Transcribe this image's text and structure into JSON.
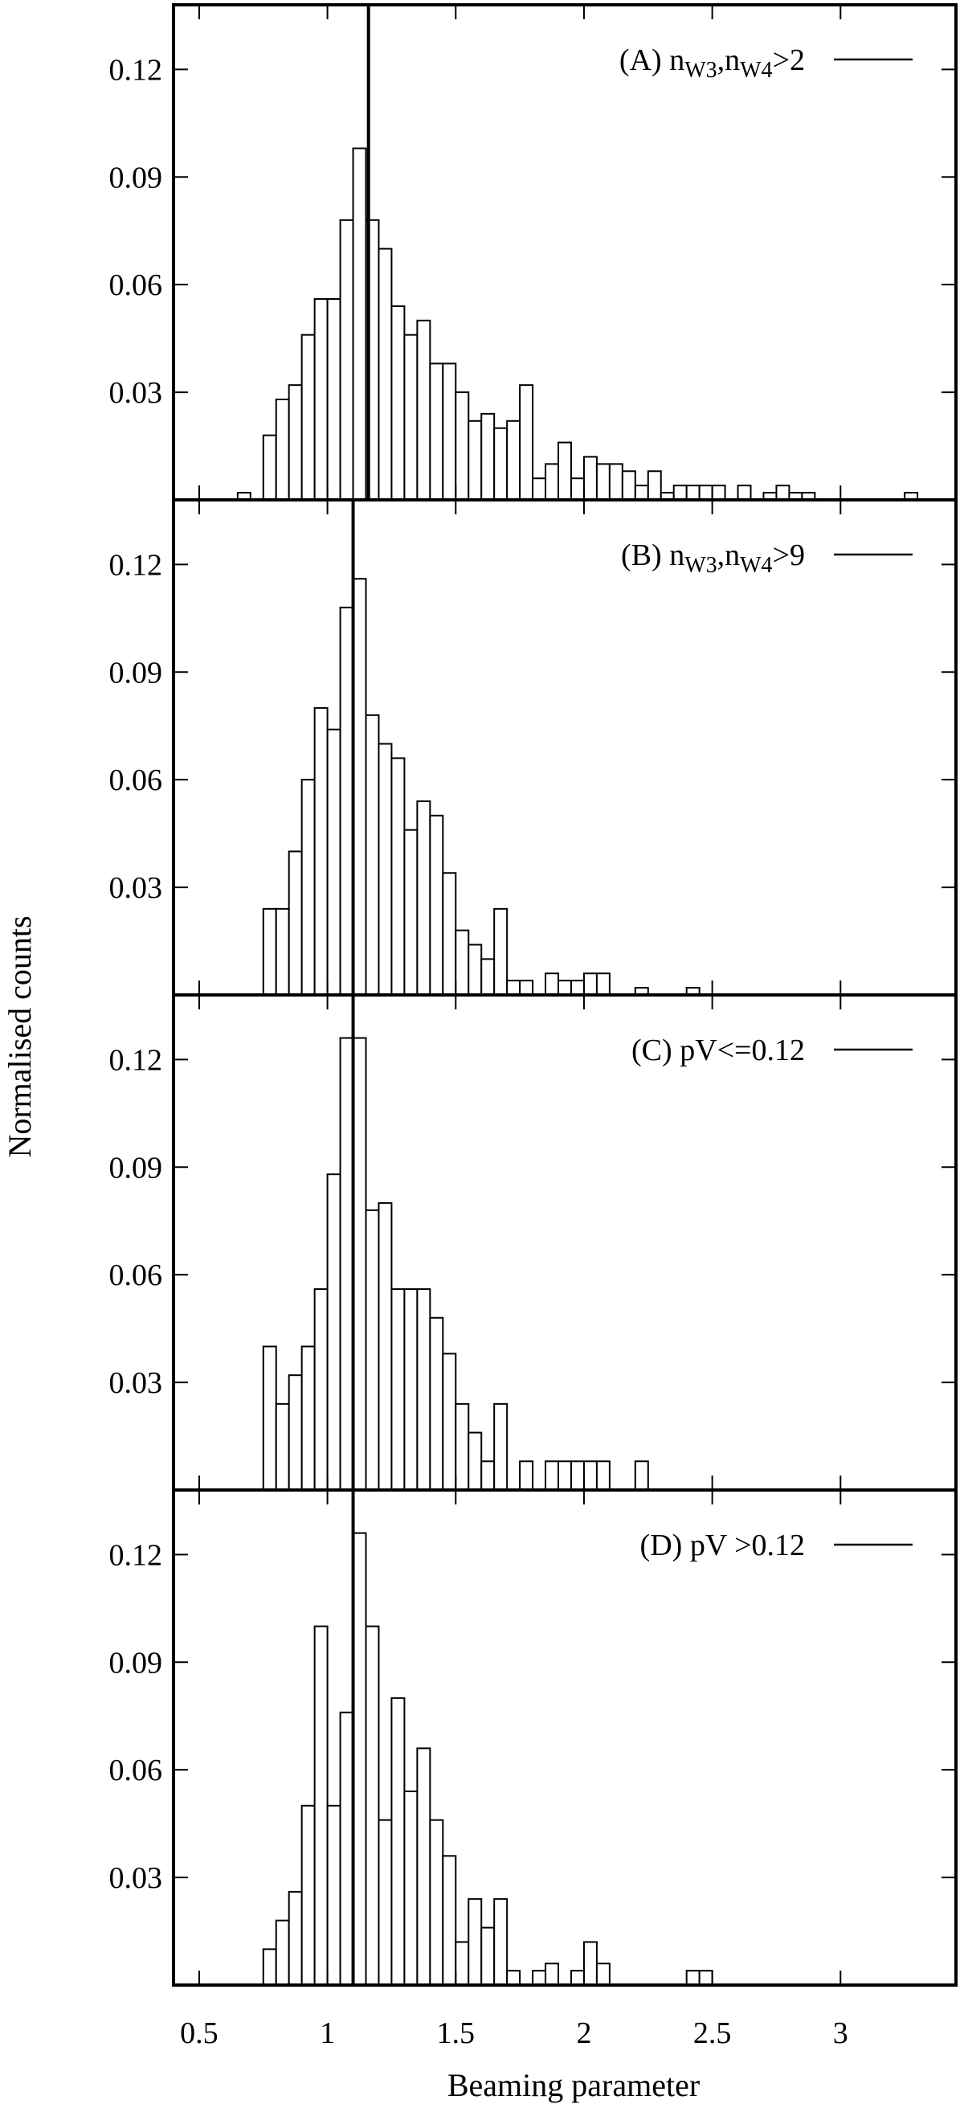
{
  "chart_data": {
    "type": "bar",
    "xlabel": "Beaming parameter",
    "ylabel": "Normalised counts",
    "xlim": [
      0.4,
      3.45
    ],
    "ylim": [
      0,
      0.138
    ],
    "bin_width": 0.05,
    "x_ticks": [
      0.5,
      1,
      1.5,
      2,
      2.5,
      3
    ],
    "x_tick_labels": [
      "0.5",
      "1",
      "1.5",
      "2",
      "2.5",
      "3"
    ],
    "y_ticks": [
      0.03,
      0.06,
      0.09,
      0.12
    ],
    "y_tick_labels": [
      "0.03",
      "0.06",
      "0.09",
      "0.12"
    ],
    "grid": false,
    "legend_position": "top-right",
    "panels": [
      {
        "label_prefix": "(A) ",
        "label_parts": [
          {
            "t": "n",
            "sub": false
          },
          {
            "t": "W3",
            "sub": true
          },
          {
            "t": ",n",
            "sub": false
          },
          {
            "t": "W4",
            "sub": true
          },
          {
            "t": ">2",
            "sub": false
          }
        ],
        "median": 1.16,
        "bins": [
          [
            0.65,
            0.002
          ],
          [
            0.75,
            0.018
          ],
          [
            0.8,
            0.028
          ],
          [
            0.85,
            0.032
          ],
          [
            0.9,
            0.046
          ],
          [
            0.95,
            0.056
          ],
          [
            1.0,
            0.056
          ],
          [
            1.05,
            0.078
          ],
          [
            1.1,
            0.098
          ],
          [
            1.15,
            0.078
          ],
          [
            1.2,
            0.07
          ],
          [
            1.25,
            0.054
          ],
          [
            1.3,
            0.046
          ],
          [
            1.35,
            0.05
          ],
          [
            1.4,
            0.038
          ],
          [
            1.45,
            0.038
          ],
          [
            1.5,
            0.03
          ],
          [
            1.55,
            0.022
          ],
          [
            1.6,
            0.024
          ],
          [
            1.65,
            0.02
          ],
          [
            1.7,
            0.022
          ],
          [
            1.75,
            0.032
          ],
          [
            1.8,
            0.006
          ],
          [
            1.85,
            0.01
          ],
          [
            1.9,
            0.016
          ],
          [
            1.95,
            0.006
          ],
          [
            2.0,
            0.012
          ],
          [
            2.05,
            0.01
          ],
          [
            2.1,
            0.01
          ],
          [
            2.15,
            0.008
          ],
          [
            2.2,
            0.004
          ],
          [
            2.25,
            0.008
          ],
          [
            2.3,
            0.002
          ],
          [
            2.35,
            0.004
          ],
          [
            2.4,
            0.004
          ],
          [
            2.45,
            0.004
          ],
          [
            2.5,
            0.004
          ],
          [
            2.6,
            0.004
          ],
          [
            2.7,
            0.002
          ],
          [
            2.75,
            0.004
          ],
          [
            2.8,
            0.002
          ],
          [
            2.85,
            0.002
          ],
          [
            3.25,
            0.002
          ]
        ]
      },
      {
        "label_prefix": "(B) ",
        "label_parts": [
          {
            "t": "n",
            "sub": false
          },
          {
            "t": "W3",
            "sub": true
          },
          {
            "t": ",n",
            "sub": false
          },
          {
            "t": "W4",
            "sub": true
          },
          {
            "t": ">9",
            "sub": false
          }
        ],
        "median": 1.1,
        "bins": [
          [
            0.75,
            0.024
          ],
          [
            0.8,
            0.024
          ],
          [
            0.85,
            0.04
          ],
          [
            0.9,
            0.06
          ],
          [
            0.95,
            0.08
          ],
          [
            1.0,
            0.074
          ],
          [
            1.05,
            0.108
          ],
          [
            1.1,
            0.116
          ],
          [
            1.15,
            0.078
          ],
          [
            1.2,
            0.07
          ],
          [
            1.25,
            0.066
          ],
          [
            1.3,
            0.046
          ],
          [
            1.35,
            0.054
          ],
          [
            1.4,
            0.05
          ],
          [
            1.45,
            0.034
          ],
          [
            1.5,
            0.018
          ],
          [
            1.55,
            0.014
          ],
          [
            1.6,
            0.01
          ],
          [
            1.65,
            0.024
          ],
          [
            1.7,
            0.004
          ],
          [
            1.75,
            0.004
          ],
          [
            1.85,
            0.006
          ],
          [
            1.9,
            0.004
          ],
          [
            1.95,
            0.004
          ],
          [
            2.0,
            0.006
          ],
          [
            2.05,
            0.006
          ],
          [
            2.2,
            0.002
          ],
          [
            2.4,
            0.002
          ]
        ]
      },
      {
        "label_prefix": "(C) ",
        "label_parts": [
          {
            "t": "pV<=0.12",
            "sub": false
          }
        ],
        "median": 1.1,
        "bins": [
          [
            0.75,
            0.04
          ],
          [
            0.8,
            0.024
          ],
          [
            0.85,
            0.032
          ],
          [
            0.9,
            0.04
          ],
          [
            0.95,
            0.056
          ],
          [
            1.0,
            0.088
          ],
          [
            1.05,
            0.126
          ],
          [
            1.1,
            0.126
          ],
          [
            1.15,
            0.078
          ],
          [
            1.2,
            0.08
          ],
          [
            1.25,
            0.056
          ],
          [
            1.3,
            0.056
          ],
          [
            1.35,
            0.056
          ],
          [
            1.4,
            0.048
          ],
          [
            1.45,
            0.038
          ],
          [
            1.5,
            0.024
          ],
          [
            1.55,
            0.016
          ],
          [
            1.6,
            0.008
          ],
          [
            1.65,
            0.024
          ],
          [
            1.75,
            0.008
          ],
          [
            1.85,
            0.008
          ],
          [
            1.9,
            0.008
          ],
          [
            1.95,
            0.008
          ],
          [
            2.0,
            0.008
          ],
          [
            2.05,
            0.008
          ],
          [
            2.2,
            0.008
          ]
        ]
      },
      {
        "label_prefix": "(D) ",
        "label_parts": [
          {
            "t": "pV >0.12",
            "sub": false
          }
        ],
        "median": 1.1,
        "bins": [
          [
            0.75,
            0.01
          ],
          [
            0.8,
            0.018
          ],
          [
            0.85,
            0.026
          ],
          [
            0.9,
            0.05
          ],
          [
            0.95,
            0.1
          ],
          [
            1.0,
            0.05
          ],
          [
            1.05,
            0.076
          ],
          [
            1.1,
            0.126
          ],
          [
            1.15,
            0.1
          ],
          [
            1.2,
            0.046
          ],
          [
            1.25,
            0.08
          ],
          [
            1.3,
            0.054
          ],
          [
            1.35,
            0.066
          ],
          [
            1.4,
            0.046
          ],
          [
            1.45,
            0.036
          ],
          [
            1.5,
            0.012
          ],
          [
            1.55,
            0.024
          ],
          [
            1.6,
            0.016
          ],
          [
            1.65,
            0.024
          ],
          [
            1.7,
            0.004
          ],
          [
            1.8,
            0.004
          ],
          [
            1.85,
            0.006
          ],
          [
            1.95,
            0.004
          ],
          [
            2.0,
            0.012
          ],
          [
            2.05,
            0.006
          ],
          [
            2.4,
            0.004
          ],
          [
            2.45,
            0.004
          ]
        ]
      }
    ]
  }
}
